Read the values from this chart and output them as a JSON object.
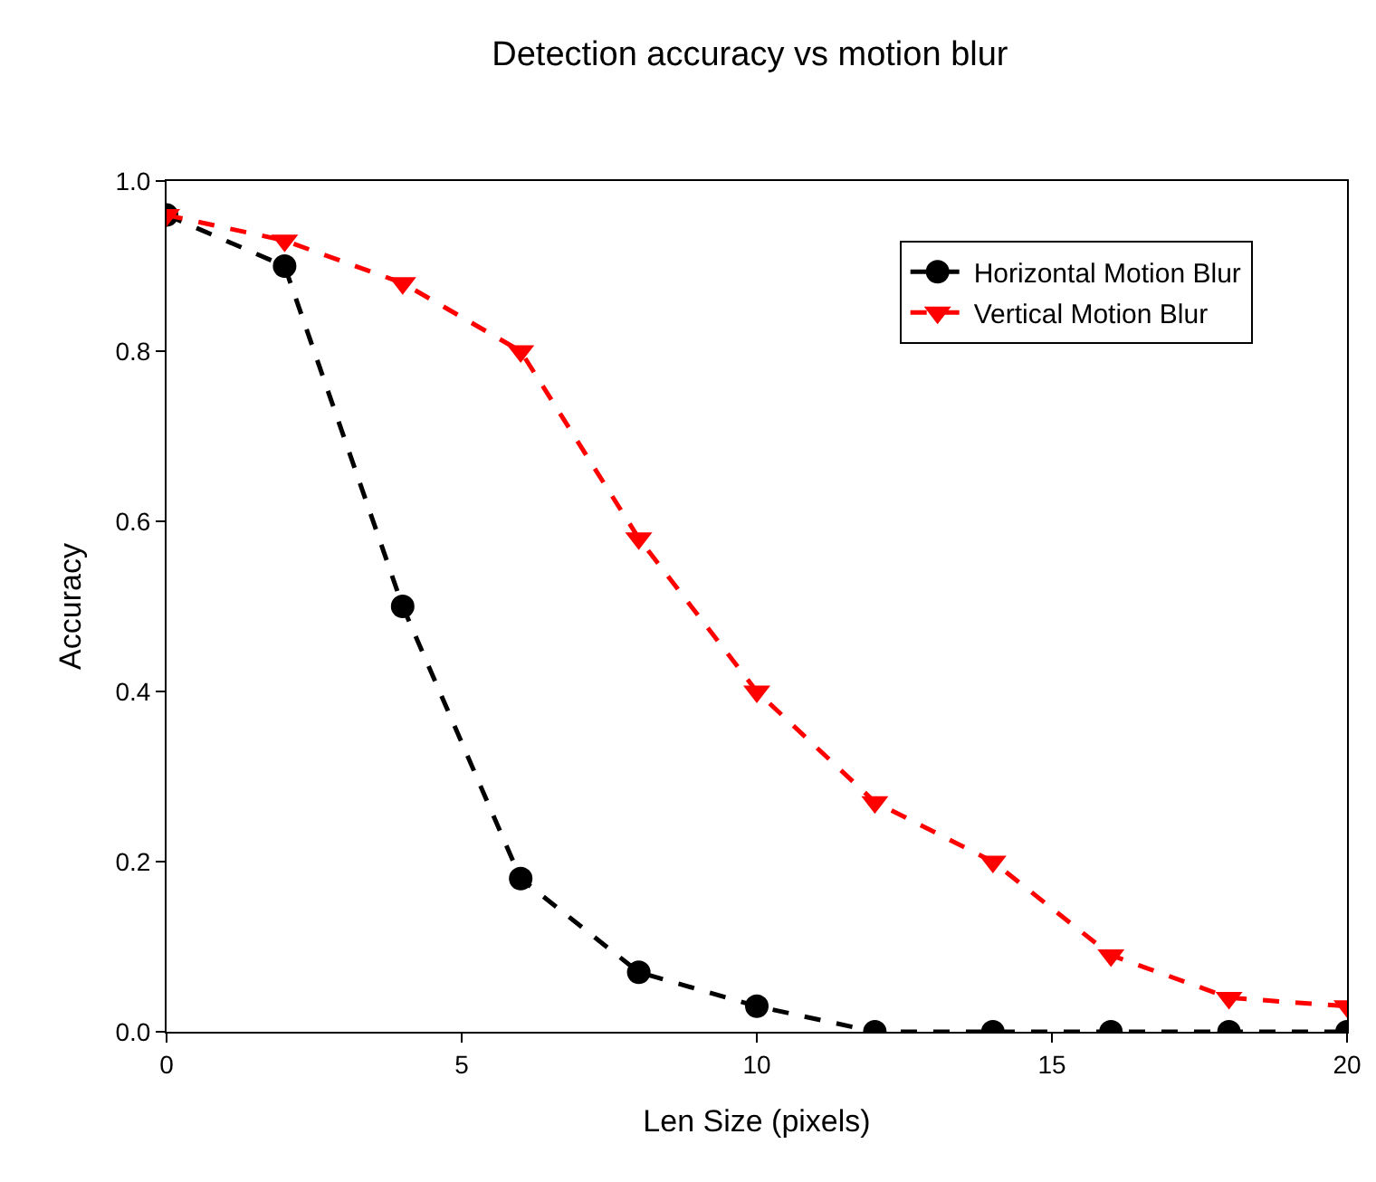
{
  "chart_data": {
    "type": "line",
    "title": "Detection accuracy vs motion blur",
    "xlabel": "Len Size (pixels)",
    "ylabel": "Accuracy",
    "x": [
      0,
      2,
      4,
      6,
      8,
      10,
      12,
      14,
      16,
      18,
      20
    ],
    "series": [
      {
        "name": "Horizontal Motion Blur",
        "color": "#000000",
        "marker": "circle",
        "values": [
          0.96,
          0.9,
          0.5,
          0.18,
          0.07,
          0.03,
          0.0,
          0.0,
          0.0,
          0.0,
          0.0
        ]
      },
      {
        "name": "Vertical Motion Blur",
        "color": "#ff0000",
        "marker": "triangle-down",
        "values": [
          0.96,
          0.93,
          0.88,
          0.8,
          0.58,
          0.4,
          0.27,
          0.2,
          0.09,
          0.04,
          0.03
        ]
      }
    ],
    "xlim": [
      0,
      20
    ],
    "xticks": [
      0,
      5,
      10,
      15,
      20
    ],
    "ylim": [
      0,
      1
    ],
    "yticks": [
      {
        "value": 0,
        "label": "0.0"
      },
      {
        "value": 0.2,
        "label": "0.2"
      },
      {
        "value": 0.4,
        "label": "0.4"
      },
      {
        "value": 0.6,
        "label": "0.6"
      },
      {
        "value": 0.8,
        "label": "0.8"
      },
      {
        "value": 1,
        "label": "1.0"
      }
    ],
    "line_style": "dashed",
    "legend": "top right"
  }
}
